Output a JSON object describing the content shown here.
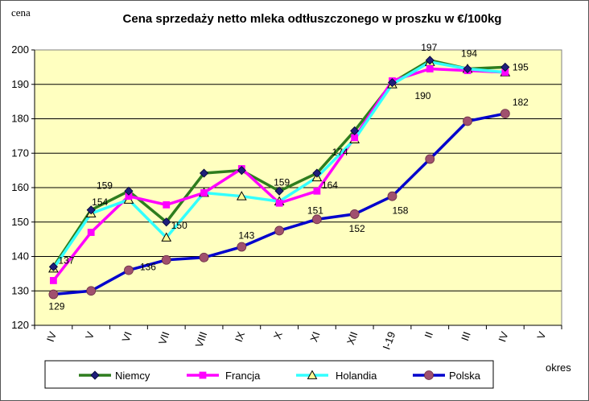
{
  "chart_data": {
    "type": "line",
    "title": "Cena sprzedaży netto mleka odtłuszczonego w proszku w €/100kg",
    "ylabel": "cena",
    "xlabel": "okres",
    "ylim": [
      120,
      200
    ],
    "yticks": [
      120,
      130,
      140,
      150,
      160,
      170,
      180,
      190,
      200
    ],
    "categories": [
      "IV",
      "V",
      "VI",
      "VII",
      "VIII",
      "IX",
      "X",
      "XI",
      "XII",
      "I-19",
      "II",
      "III",
      "IV",
      "V"
    ],
    "plot_background": "#FFFFC0",
    "grid": "horizontal",
    "legend_position": "bottom",
    "series": [
      {
        "name": "Niemcy",
        "color": "#2E7D1E",
        "marker": "diamond",
        "marker_color": "#1F1F7A",
        "values": [
          137,
          153.5,
          159,
          150,
          164.2,
          165,
          159,
          164.2,
          176.5,
          190.5,
          197,
          194.5,
          195,
          null
        ]
      },
      {
        "name": "Francja",
        "color": "#FF00FF",
        "marker": "square",
        "marker_color": "#FF00FF",
        "values": [
          133,
          147,
          157.5,
          155,
          158.5,
          165.5,
          155.5,
          159,
          174.5,
          191,
          194.5,
          194,
          193.5,
          null
        ]
      },
      {
        "name": "Holandia",
        "color": "#33FFFF",
        "marker": "triangle",
        "marker_color": "#FFFF99",
        "values": [
          136.5,
          152.5,
          156.5,
          145.5,
          158.5,
          157.5,
          156,
          163,
          174,
          190,
          196.5,
          194.5,
          193.5,
          null
        ]
      },
      {
        "name": "Polska",
        "color": "#0000CC",
        "marker": "circle",
        "marker_color": "#A0506E",
        "values": [
          129,
          130,
          136,
          139,
          139.7,
          142.8,
          147.5,
          150.8,
          152.3,
          157.5,
          168.3,
          179.3,
          181.5,
          null
        ]
      }
    ],
    "data_labels": [
      {
        "text": "137",
        "series": "Niemcy",
        "index": 0
      },
      {
        "text": "154",
        "series": "Niemcy",
        "index": 1
      },
      {
        "text": "159",
        "series": "Niemcy",
        "index": 2
      },
      {
        "text": "150",
        "series": "Niemcy",
        "index": 3
      },
      {
        "text": "159",
        "series": "Niemcy",
        "index": 6
      },
      {
        "text": "164",
        "series": "Niemcy",
        "index": 7
      },
      {
        "text": "174",
        "series": "Holandia",
        "index": 8
      },
      {
        "text": "190",
        "series": "Holandia",
        "index": 9
      },
      {
        "text": "197",
        "series": "Niemcy",
        "index": 10
      },
      {
        "text": "194",
        "series": "Niemcy",
        "index": 11
      },
      {
        "text": "195",
        "series": "Niemcy",
        "index": 12
      },
      {
        "text": "129",
        "series": "Polska",
        "index": 0
      },
      {
        "text": "136",
        "series": "Polska",
        "index": 2
      },
      {
        "text": "143",
        "series": "Polska",
        "index": 5
      },
      {
        "text": "151",
        "series": "Polska",
        "index": 7
      },
      {
        "text": "152",
        "series": "Polska",
        "index": 8
      },
      {
        "text": "158",
        "series": "Polska",
        "index": 9
      },
      {
        "text": "182",
        "series": "Polska",
        "index": 12
      }
    ]
  }
}
